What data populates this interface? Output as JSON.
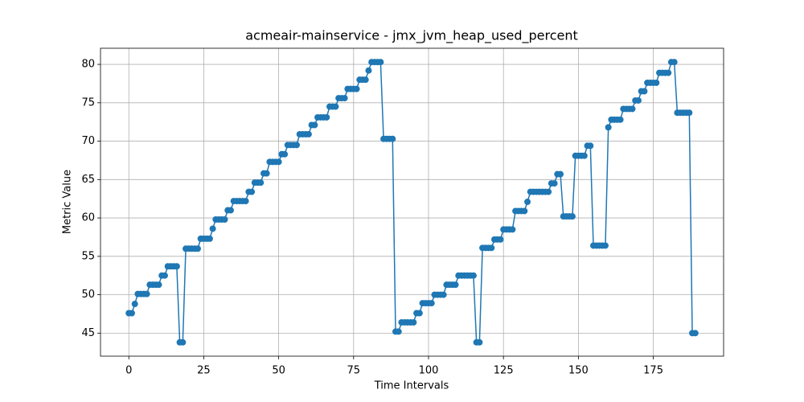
{
  "chart_data": {
    "type": "line",
    "title": "acmeair-mainservice - jmx_jvm_heap_used_percent",
    "x_label": "Time Intervals",
    "y_label": "Metric Value",
    "x": [
      0,
      1,
      2,
      3,
      4,
      5,
      6,
      7,
      8,
      9,
      10,
      11,
      12,
      13,
      14,
      15,
      16,
      17,
      18,
      19,
      20,
      21,
      22,
      23,
      24,
      25,
      26,
      27,
      28,
      29,
      30,
      31,
      32,
      33,
      34,
      35,
      36,
      37,
      38,
      39,
      40,
      41,
      42,
      43,
      44,
      45,
      46,
      47,
      48,
      49,
      50,
      51,
      52,
      53,
      54,
      55,
      56,
      57,
      58,
      59,
      60,
      61,
      62,
      63,
      64,
      65,
      66,
      67,
      68,
      69,
      70,
      71,
      72,
      73,
      74,
      75,
      76,
      77,
      78,
      79,
      80,
      81,
      82,
      83,
      84,
      85,
      86,
      87,
      88,
      89,
      90,
      91,
      92,
      93,
      94,
      95,
      96,
      97,
      98,
      99,
      100,
      101,
      102,
      103,
      104,
      105,
      106,
      107,
      108,
      109,
      110,
      111,
      112,
      113,
      114,
      115,
      116,
      117,
      118,
      119,
      120,
      121,
      122,
      123,
      124,
      125,
      126,
      127,
      128,
      129,
      130,
      131,
      132,
      133,
      134,
      135,
      136,
      137,
      138,
      139,
      140,
      141,
      142,
      143,
      144,
      145,
      146,
      147,
      148,
      149,
      150,
      151,
      152,
      153,
      154,
      155,
      156,
      157,
      158,
      159,
      160,
      161,
      162,
      163,
      164,
      165,
      166,
      167,
      168,
      169,
      170,
      171,
      172,
      173,
      174,
      175,
      176,
      177,
      178,
      179,
      180,
      181,
      182,
      183,
      184,
      185,
      186,
      187,
      188,
      189
    ],
    "series": [
      {
        "color": "#1f77b4",
        "values": [
          47.6,
          47.6,
          48.8,
          50.1,
          50.1,
          50.1,
          50.1,
          51.3,
          51.3,
          51.3,
          51.3,
          52.5,
          52.5,
          53.7,
          53.7,
          53.7,
          53.7,
          43.8,
          43.8,
          56.0,
          56.0,
          56.0,
          56.0,
          56.0,
          57.3,
          57.3,
          57.3,
          57.3,
          58.6,
          59.8,
          59.8,
          59.8,
          59.8,
          61.0,
          61.0,
          62.2,
          62.2,
          62.2,
          62.2,
          62.2,
          63.4,
          63.4,
          64.6,
          64.6,
          64.6,
          65.8,
          65.8,
          67.3,
          67.3,
          67.3,
          67.3,
          68.3,
          68.3,
          69.5,
          69.5,
          69.5,
          69.5,
          70.9,
          70.9,
          70.9,
          70.9,
          72.1,
          72.1,
          73.1,
          73.1,
          73.1,
          73.1,
          74.5,
          74.5,
          74.5,
          75.6,
          75.6,
          75.6,
          76.8,
          76.8,
          76.8,
          76.8,
          78.0,
          78.0,
          78.0,
          79.2,
          80.3,
          80.3,
          80.3,
          80.3,
          70.3,
          70.3,
          70.3,
          70.3,
          45.2,
          45.2,
          46.4,
          46.4,
          46.4,
          46.4,
          46.4,
          47.6,
          47.6,
          48.9,
          48.9,
          48.9,
          48.9,
          50.0,
          50.0,
          50.0,
          50.0,
          51.3,
          51.3,
          51.3,
          51.3,
          52.5,
          52.5,
          52.5,
          52.5,
          52.5,
          52.5,
          43.8,
          43.8,
          56.1,
          56.1,
          56.1,
          56.1,
          57.2,
          57.2,
          57.2,
          58.5,
          58.5,
          58.5,
          58.5,
          60.9,
          60.9,
          60.9,
          60.9,
          62.1,
          63.4,
          63.4,
          63.4,
          63.4,
          63.4,
          63.4,
          63.4,
          64.5,
          64.5,
          65.7,
          65.7,
          60.2,
          60.2,
          60.2,
          60.2,
          68.1,
          68.1,
          68.1,
          68.1,
          69.4,
          69.4,
          56.4,
          56.4,
          56.4,
          56.4,
          56.4,
          71.8,
          72.8,
          72.8,
          72.8,
          72.8,
          74.2,
          74.2,
          74.2,
          74.2,
          75.3,
          75.3,
          76.5,
          76.5,
          77.6,
          77.6,
          77.6,
          77.6,
          78.9,
          78.9,
          78.9,
          78.9,
          80.3,
          80.3,
          73.7,
          73.7,
          73.7,
          73.7,
          73.7,
          45.0,
          45.0
        ]
      }
    ],
    "xlim": [
      -9.45,
      198.45
    ],
    "ylim": [
      42.0,
      82.1
    ],
    "xticks": [
      0,
      25,
      50,
      75,
      100,
      125,
      150,
      175
    ],
    "yticks": [
      45,
      50,
      55,
      60,
      65,
      70,
      75,
      80
    ],
    "grid": true,
    "markers": true
  }
}
